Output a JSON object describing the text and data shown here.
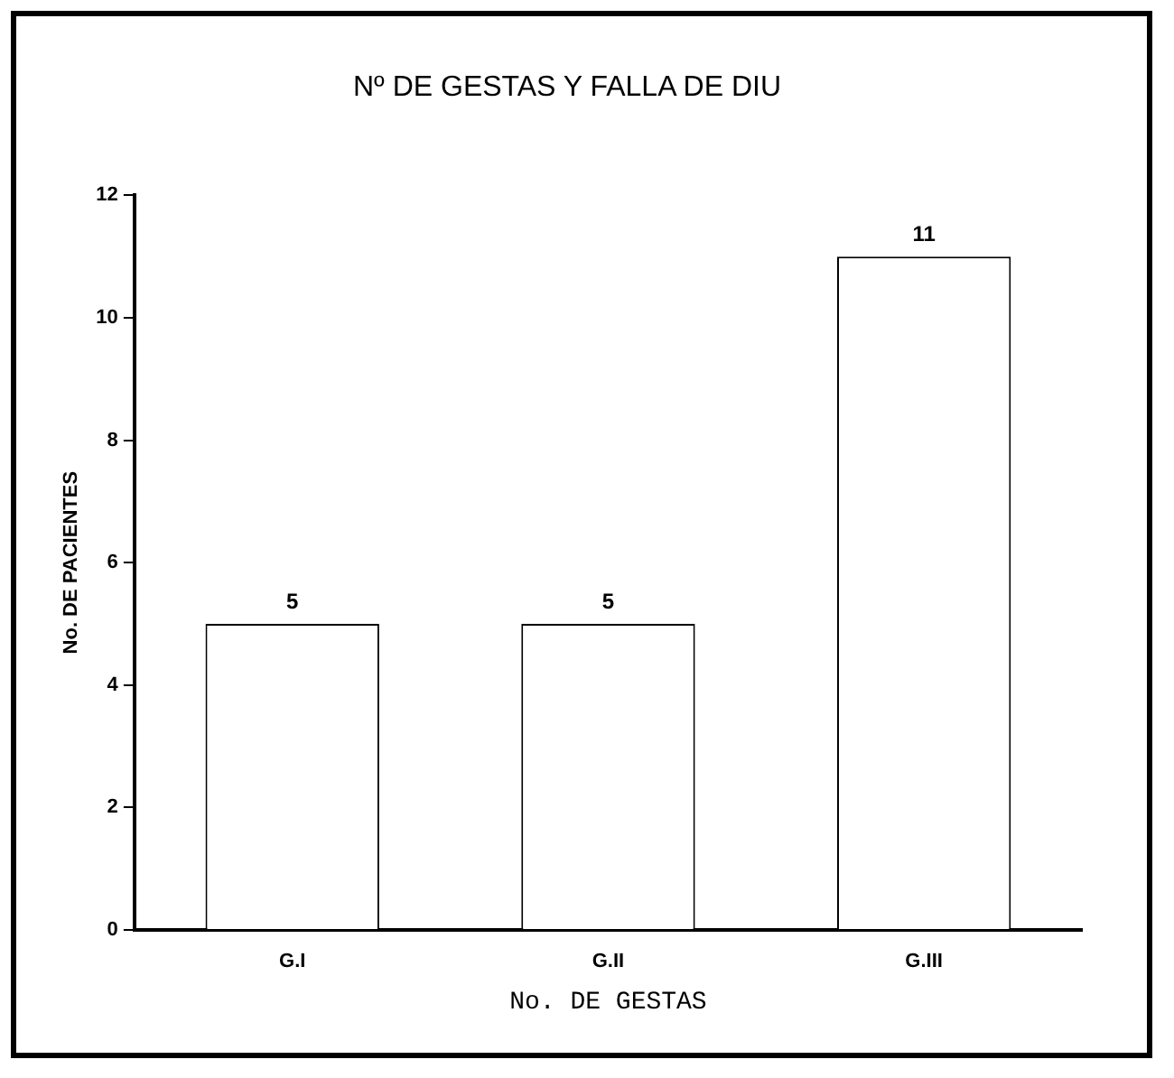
{
  "chart_data": {
    "type": "bar",
    "title": "Nº DE GESTAS Y FALLA DE DIU",
    "xlabel": "No. DE GESTAS",
    "ylabel": "No. DE PACIENTES",
    "categories": [
      "G.I",
      "G.II",
      "G.III"
    ],
    "values": [
      5,
      5,
      11
    ],
    "color": "#ffffff",
    "ylim": [
      0,
      12
    ],
    "yticks": [
      0,
      2,
      4,
      6,
      8,
      10,
      12
    ],
    "grid": false,
    "legend": false,
    "data_labels": true
  }
}
